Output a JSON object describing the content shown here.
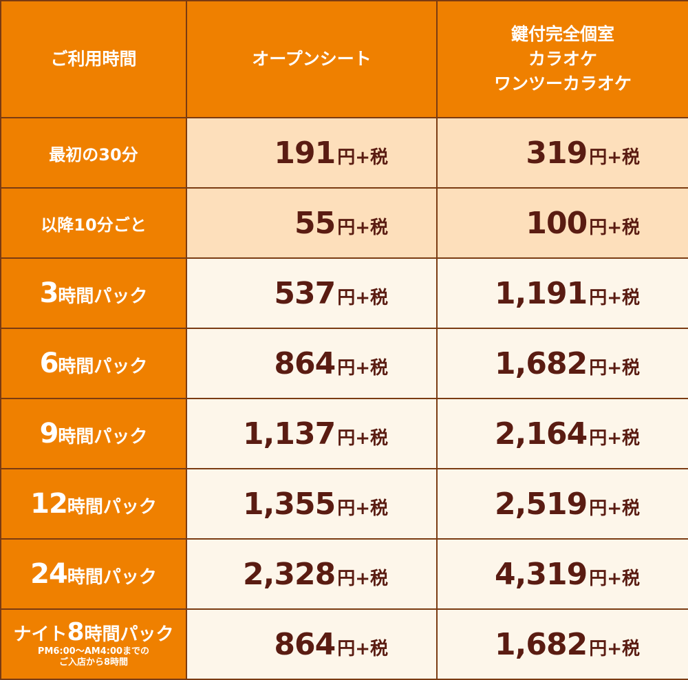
{
  "header": {
    "usage_time": "ご利用時間",
    "open_seat": "オープンシート",
    "private_room": [
      "鍵付完全個室",
      "カラオケ",
      "ワンツーカラオケ"
    ]
  },
  "unit_suffix": "円+税",
  "rows": [
    {
      "label_prefix": "",
      "label_num": "",
      "label_text": "最初の30分",
      "open": "191",
      "room": "319",
      "shade": "peach"
    },
    {
      "label_prefix": "",
      "label_num": "",
      "label_text": "以降10分ごと",
      "open": "55",
      "room": "100",
      "shade": "peach"
    },
    {
      "label_prefix": "",
      "label_num": "3",
      "label_text": "時間パック",
      "open": "537",
      "room": "1,191",
      "shade": "cream"
    },
    {
      "label_prefix": "",
      "label_num": "6",
      "label_text": "時間パック",
      "open": "864",
      "room": "1,682",
      "shade": "cream"
    },
    {
      "label_prefix": "",
      "label_num": "9",
      "label_text": "時間パック",
      "open": "1,137",
      "room": "2,164",
      "shade": "cream"
    },
    {
      "label_prefix": "",
      "label_num": "12",
      "label_text": "時間パック",
      "open": "1,355",
      "room": "2,519",
      "shade": "cream"
    },
    {
      "label_prefix": "",
      "label_num": "24",
      "label_text": "時間パック",
      "open": "2,328",
      "room": "4,319",
      "shade": "cream"
    }
  ],
  "night": {
    "prefix": "ナイト",
    "num": "8",
    "suffix": "時間パック",
    "note_line1": "PM6:00～AM4:00までの",
    "note_line2": "ご入店から8時間",
    "open": "864",
    "room": "1,682"
  }
}
